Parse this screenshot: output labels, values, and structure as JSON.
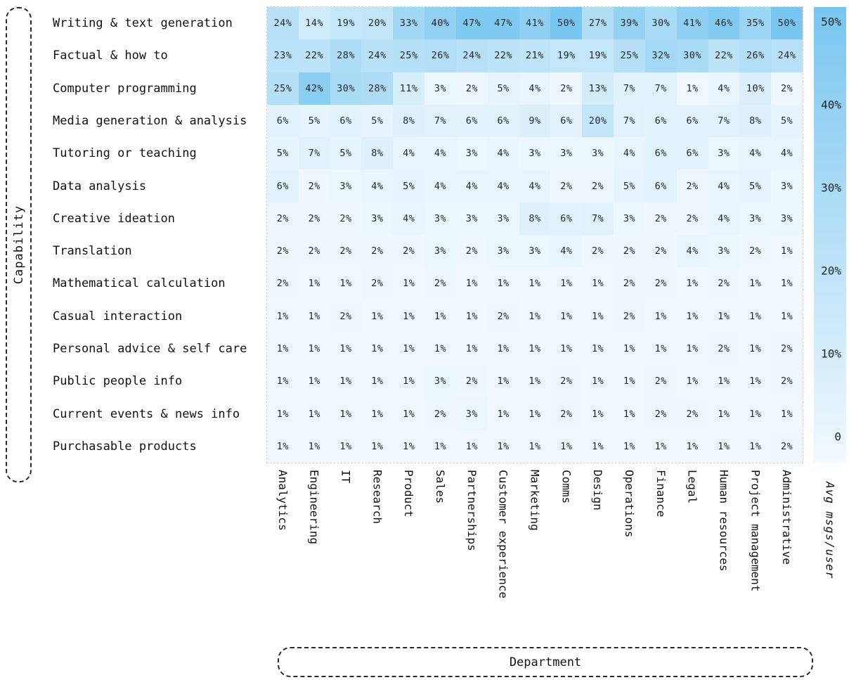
{
  "chart_data": {
    "type": "heatmap",
    "xlabel": "Department",
    "ylabel": "Capability",
    "value_suffix": "%",
    "x_categories": [
      "Analytics",
      "Engineering",
      "IT",
      "Research",
      "Product",
      "Sales",
      "Partnerships",
      "Customer experience",
      "Marketing",
      "Comms",
      "Design",
      "Operations",
      "Finance",
      "Legal",
      "Human resources",
      "Project management",
      "Administrative"
    ],
    "y_categories": [
      "Writing & text generation",
      "Factual & how to",
      "Computer programming",
      "Media generation & analysis",
      "Tutoring or teaching",
      "Data analysis",
      "Creative ideation",
      "Translation",
      "Mathematical calculation",
      "Casual interaction",
      "Personal advice & self care",
      "Public people info",
      "Current events & news info",
      "Purchasable products"
    ],
    "values": [
      [
        24,
        14,
        19,
        20,
        33,
        40,
        47,
        47,
        41,
        50,
        27,
        39,
        30,
        41,
        46,
        35,
        50
      ],
      [
        23,
        22,
        28,
        24,
        25,
        26,
        24,
        22,
        21,
        19,
        19,
        25,
        32,
        30,
        22,
        26,
        24
      ],
      [
        25,
        42,
        30,
        28,
        11,
        3,
        2,
        5,
        4,
        2,
        13,
        7,
        7,
        1,
        4,
        10,
        2
      ],
      [
        6,
        5,
        6,
        5,
        8,
        7,
        6,
        6,
        9,
        6,
        20,
        7,
        6,
        6,
        7,
        8,
        5
      ],
      [
        5,
        7,
        5,
        8,
        4,
        4,
        3,
        4,
        3,
        3,
        3,
        4,
        6,
        6,
        3,
        4,
        4
      ],
      [
        6,
        2,
        3,
        4,
        5,
        4,
        4,
        4,
        4,
        2,
        2,
        5,
        6,
        2,
        4,
        5,
        3
      ],
      [
        2,
        2,
        2,
        3,
        4,
        3,
        3,
        3,
        8,
        6,
        7,
        3,
        2,
        2,
        4,
        3,
        3
      ],
      [
        2,
        2,
        2,
        2,
        2,
        3,
        2,
        3,
        3,
        4,
        2,
        2,
        2,
        4,
        3,
        2,
        1
      ],
      [
        2,
        1,
        1,
        2,
        1,
        2,
        1,
        1,
        1,
        1,
        1,
        2,
        2,
        1,
        2,
        1,
        1
      ],
      [
        1,
        1,
        2,
        1,
        1,
        1,
        1,
        2,
        1,
        1,
        1,
        2,
        1,
        1,
        1,
        1,
        1
      ],
      [
        1,
        1,
        1,
        1,
        1,
        1,
        1,
        1,
        1,
        1,
        1,
        1,
        1,
        1,
        2,
        1,
        2
      ],
      [
        1,
        1,
        1,
        1,
        1,
        3,
        2,
        1,
        1,
        2,
        1,
        1,
        2,
        1,
        1,
        1,
        2
      ],
      [
        1,
        1,
        1,
        1,
        1,
        2,
        3,
        1,
        1,
        2,
        1,
        1,
        2,
        2,
        1,
        1,
        1
      ],
      [
        1,
        1,
        1,
        1,
        1,
        1,
        1,
        1,
        1,
        1,
        1,
        1,
        1,
        1,
        1,
        1,
        2
      ]
    ],
    "color_scale": {
      "min_value": 0,
      "max_value": 50,
      "min_color": "#f2f9fe",
      "max_color": "#79c6f0"
    },
    "colorbar": {
      "label": "Avg msgs/user",
      "ticks": [
        {
          "label": "50%",
          "value": 50
        },
        {
          "label": "40%",
          "value": 40
        },
        {
          "label": "30%",
          "value": 30
        },
        {
          "label": "20%",
          "value": 20
        },
        {
          "label": "10%",
          "value": 10
        },
        {
          "label": "0",
          "value": 0
        }
      ]
    },
    "legend_position": "right",
    "grid": false
  }
}
